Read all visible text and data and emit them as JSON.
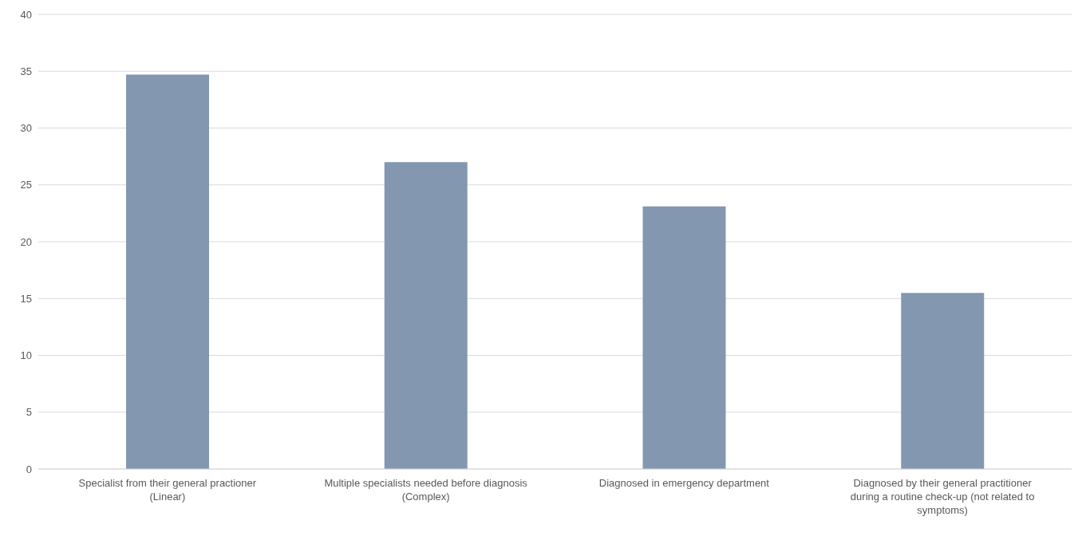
{
  "chart_data": {
    "type": "bar",
    "categories": [
      "Specialist from their general practioner (Linear)",
      "Multiple specialists needed before diagnosis (Complex)",
      "Diagnosed in emergency department",
      "Diagnosed by their general practitioner during a routine check-up (not related to symptoms)"
    ],
    "values": [
      34.7,
      27.0,
      23.1,
      15.5
    ],
    "color": "#8497b0",
    "ylim": [
      0,
      40
    ],
    "yticks": [
      0,
      5,
      10,
      15,
      20,
      25,
      30,
      35,
      40
    ],
    "grid": "y",
    "legend": false
  }
}
